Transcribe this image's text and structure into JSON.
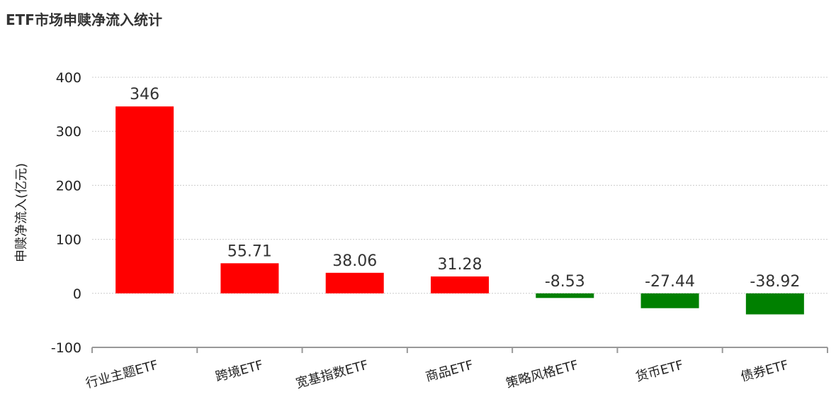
{
  "chart_data": {
    "type": "bar",
    "title": "ETF市场申赎净流入统计",
    "ylabel": "申赎净流入(亿元)",
    "xlabel": "",
    "categories": [
      "行业主题ETF",
      "跨境ETF",
      "宽基指数ETF",
      "商品ETF",
      "策略风格ETF",
      "货币ETF",
      "债券ETF"
    ],
    "values": [
      346,
      55.71,
      38.06,
      31.28,
      -8.53,
      -27.44,
      -38.92
    ],
    "data_labels": [
      "346",
      "55.71",
      "38.06",
      "31.28",
      "-8.53",
      "-27.44",
      "-38.92"
    ],
    "ylim": [
      -100,
      400
    ],
    "yticks": [
      -100,
      0,
      100,
      200,
      300,
      400
    ],
    "grid": true,
    "colors": {
      "positive": "#ff0000",
      "negative": "#008000"
    }
  }
}
